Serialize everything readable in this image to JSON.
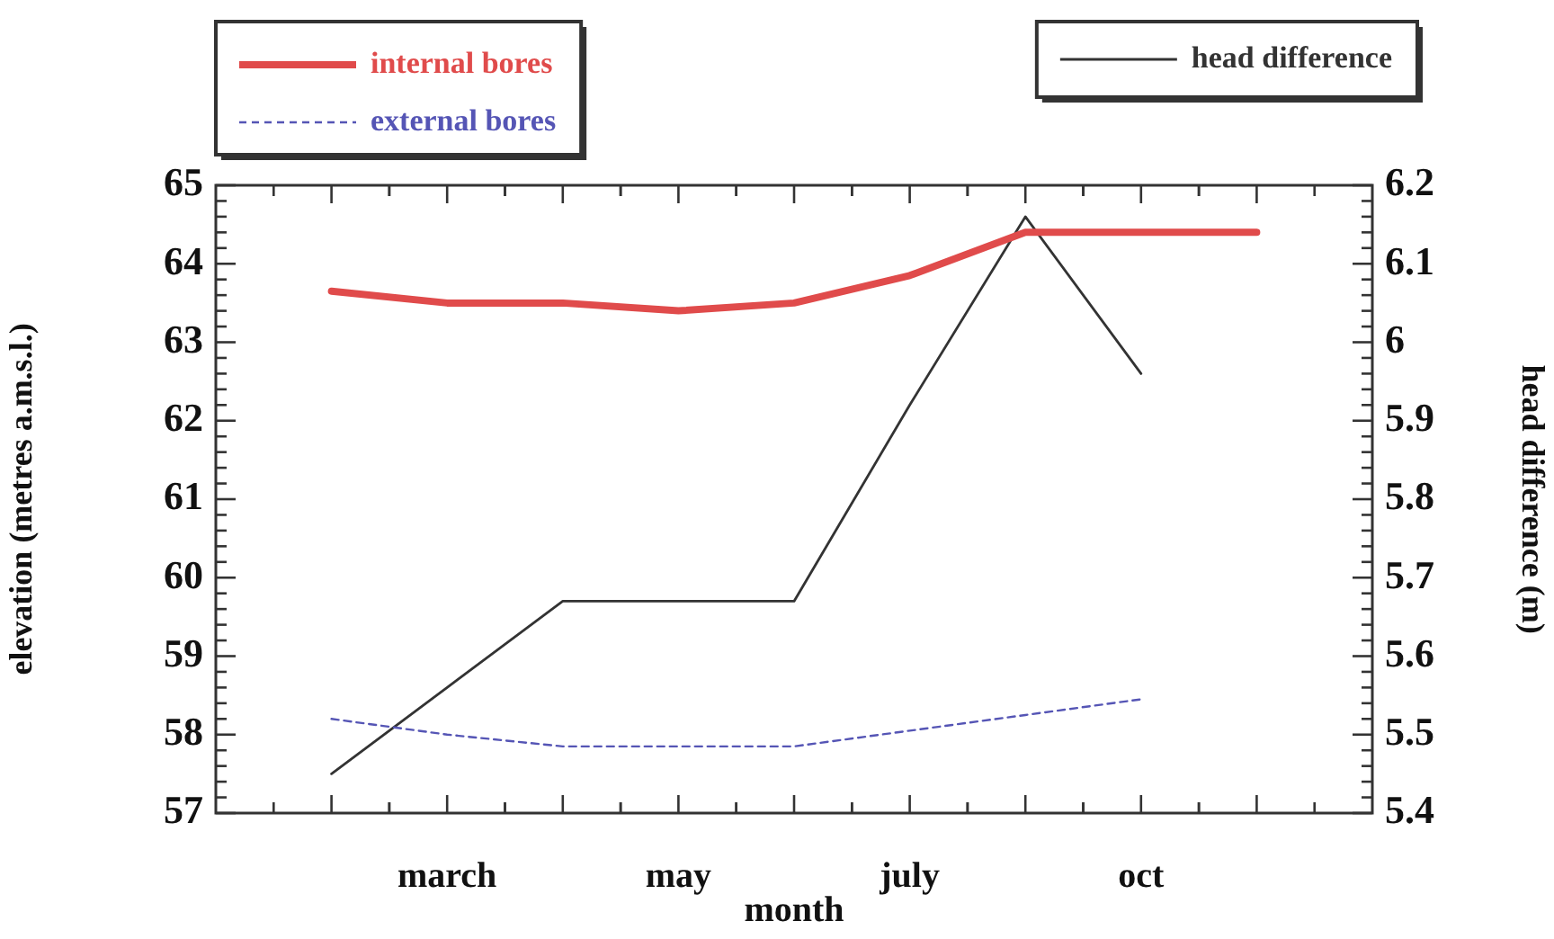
{
  "chart_data": {
    "type": "line",
    "xlabel": "month",
    "ylabel": "elevation (metres a.m.s.l.)",
    "y2label": "head difference (m)",
    "categories": [
      null,
      "march",
      null,
      "may",
      null,
      "july",
      null,
      "oct",
      null
    ],
    "series": [
      {
        "name": "internal bores",
        "color": "#e04b4b",
        "line_style": "solid",
        "values": [
          63.65,
          63.5,
          63.5,
          63.4,
          63.5,
          63.85,
          64.4,
          64.4,
          64.4
        ]
      },
      {
        "name": "external bores",
        "color": "#5555b5",
        "line_style": "dashed",
        "values": [
          58.2,
          58.0,
          57.85,
          57.85,
          57.85,
          58.05,
          58.25,
          58.45,
          null
        ]
      },
      {
        "name": "head difference",
        "color": "#333333",
        "line_style": "solid",
        "axis": "y2",
        "values": [
          5.45,
          5.56,
          5.67,
          5.67,
          5.67,
          5.92,
          6.16,
          5.96,
          null
        ]
      }
    ],
    "ylim": [
      57,
      65
    ],
    "yticks": [
      57,
      {
        "value": 57.2,
        "label": null
      },
      {
        "value": 57.4,
        "label": null
      },
      {
        "value": 57.6,
        "label": null
      },
      {
        "value": 57.8,
        "label": null
      },
      58,
      {
        "value": 58.2,
        "label": null
      },
      {
        "value": 58.4,
        "label": null
      },
      {
        "value": 58.6,
        "label": null
      },
      {
        "value": 58.8,
        "label": null
      },
      59,
      {
        "value": 59.2,
        "label": null
      },
      {
        "value": 59.4,
        "label": null
      },
      {
        "value": 59.6,
        "label": null
      },
      {
        "value": 59.8,
        "label": null
      },
      60,
      {
        "value": 60.2,
        "label": null
      },
      {
        "value": 60.4,
        "label": null
      },
      {
        "value": 60.6,
        "label": null
      },
      {
        "value": 60.8,
        "label": null
      },
      61,
      {
        "value": 61.2,
        "label": null
      },
      {
        "value": 61.4,
        "label": null
      },
      {
        "value": 61.6,
        "label": null
      },
      {
        "value": 61.8,
        "label": null
      },
      62,
      {
        "value": 62.2,
        "label": null
      },
      {
        "value": 62.4,
        "label": null
      },
      {
        "value": 62.6,
        "label": null
      },
      {
        "value": 62.8,
        "label": null
      },
      63,
      {
        "value": 63.2,
        "label": null
      },
      {
        "value": 63.4,
        "label": null
      },
      {
        "value": 63.6,
        "label": null
      },
      {
        "value": 63.8,
        "label": null
      },
      64,
      {
        "value": 64.2,
        "label": null
      },
      {
        "value": 64.4,
        "label": null
      },
      {
        "value": 64.6,
        "label": null
      },
      {
        "value": 64.8,
        "label": null
      },
      65
    ],
    "y2lim": [
      5.4,
      6.2
    ],
    "y2ticks": [
      5.4,
      {
        "value": 5.42,
        "label": null
      },
      {
        "value": 5.44,
        "label": null
      },
      {
        "value": 5.46,
        "label": null
      },
      {
        "value": 5.48,
        "label": null
      },
      5.5,
      {
        "value": 5.52,
        "label": null
      },
      {
        "value": 5.54,
        "label": null
      },
      {
        "value": 5.56,
        "label": null
      },
      {
        "value": 5.58,
        "label": null
      },
      5.6,
      {
        "value": 5.62,
        "label": null
      },
      {
        "value": 5.64,
        "label": null
      },
      {
        "value": 5.66,
        "label": null
      },
      {
        "value": 5.68,
        "label": null
      },
      5.7,
      {
        "value": 5.72,
        "label": null
      },
      {
        "value": 5.74,
        "label": null
      },
      {
        "value": 5.76,
        "label": null
      },
      {
        "value": 5.78,
        "label": null
      },
      5.8,
      {
        "value": 5.82,
        "label": null
      },
      {
        "value": 5.84,
        "label": null
      },
      {
        "value": 5.86,
        "label": null
      },
      {
        "value": 5.88,
        "label": null
      },
      5.9,
      {
        "value": 5.92,
        "label": null
      },
      {
        "value": 5.94,
        "label": null
      },
      {
        "value": 5.96,
        "label": null
      },
      {
        "value": 5.98,
        "label": null
      },
      6,
      {
        "value": 6.02,
        "label": null
      },
      {
        "value": 6.04,
        "label": null
      },
      {
        "value": 6.06,
        "label": null
      },
      {
        "value": 6.08,
        "label": null
      },
      6.1,
      {
        "value": 6.12,
        "label": null
      },
      {
        "value": 6.14,
        "label": null
      },
      {
        "value": 6.16,
        "label": null
      },
      {
        "value": 6.18,
        "label": null
      },
      6.2
    ],
    "grid": false,
    "legend": "top",
    "marker": "none"
  }
}
